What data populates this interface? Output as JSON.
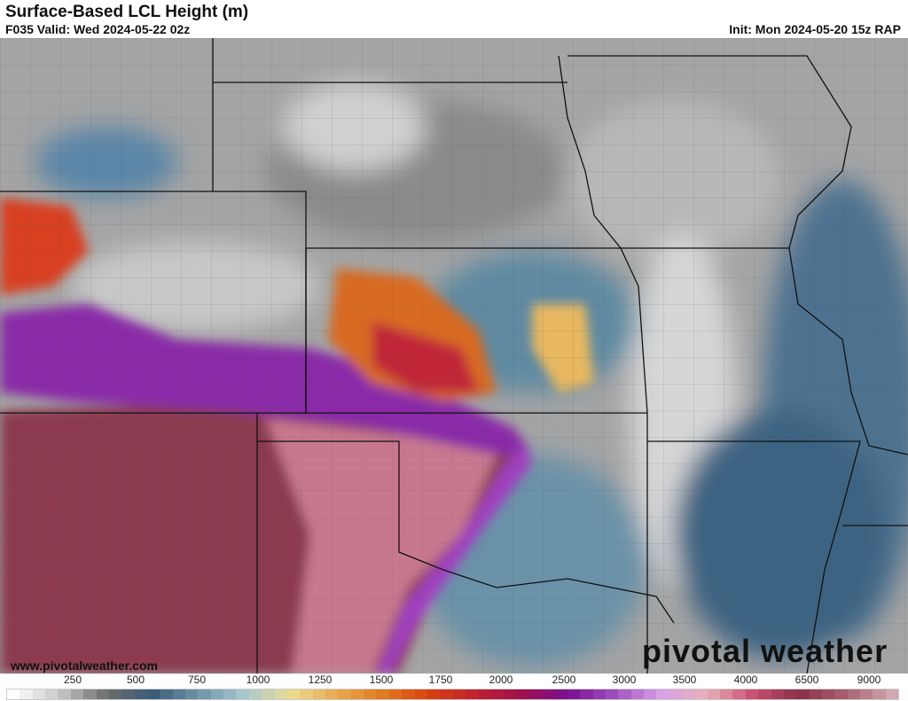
{
  "header": {
    "title": "Surface-Based LCL Height (m)",
    "valid": "F035 Valid: Wed 2024-05-22 02z",
    "init": "Init: Mon 2024-05-20 15z RAP"
  },
  "footer": {
    "url": "www.pivotalweather.com",
    "logo": "pivotal weather"
  },
  "colorbar": {
    "labels": [
      "250",
      "500",
      "750",
      "1000",
      "1250",
      "1500",
      "1750",
      "2000",
      "2500",
      "3000",
      "3500",
      "4000",
      "6500",
      "9000"
    ],
    "anchors": [
      "#ffffff",
      "#c8c8c8",
      "#6e6e6e",
      "#3a5a78",
      "#6f93a6",
      "#a8c8d0",
      "#ecdc90",
      "#e8a850",
      "#e07a20",
      "#d84010",
      "#c02030",
      "#a01050",
      "#7a1090",
      "#a050c0",
      "#d8a0e8",
      "#e8b0b8",
      "#c85070",
      "#8a3048",
      "#a86070",
      "#d0a8b0"
    ]
  },
  "map": {
    "background": "#a0a0a0"
  }
}
